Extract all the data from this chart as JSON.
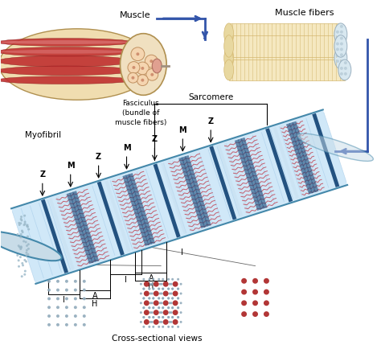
{
  "bg_color": "#ffffff",
  "labels": {
    "muscle": "Muscle",
    "muscle_fibers": "Muscle fibers",
    "fasciculus": "Fasciculus\n(bundle of\nmuscle fibers)",
    "sarcomere": "Sarcomere",
    "myofibril": "Myofibril",
    "cross_sectional": "Cross-sectional views"
  },
  "colors": {
    "muscle_outer": "#f0ddb0",
    "muscle_red1": "#c03030",
    "muscle_red2": "#d05050",
    "muscle_red3": "#e08080",
    "muscle_inner_bg": "#f0e0c0",
    "fascicle_fill": "#f5d5b0",
    "fascicle_edge": "#c09060",
    "tendon_pink": "#e0a090",
    "fiber_bg": "#f5e8c0",
    "fiber_stripe": "#d4b870",
    "fiber_end_dot": "#b8ccd8",
    "cyl_bg": "#d0e8f8",
    "cyl_line": "#a0c8e8",
    "cyl_border": "#4488aa",
    "z_line": "#1a4a7a",
    "m_line": "#3366aa",
    "a_band_red": "#c03040",
    "a_band_blue": "#2060a0",
    "i_band": "#c8e0f0",
    "arrow_blue": "#3355aa",
    "dot_blue_sm": "#90aabb",
    "dot_red": "#aa2020",
    "face_dot": "#9ab8c8"
  }
}
